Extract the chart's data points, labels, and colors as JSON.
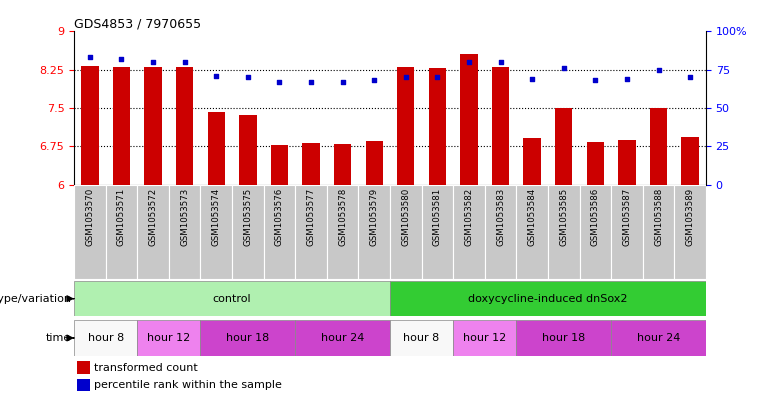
{
  "title": "GDS4853 / 7970655",
  "samples": [
    "GSM1053570",
    "GSM1053571",
    "GSM1053572",
    "GSM1053573",
    "GSM1053574",
    "GSM1053575",
    "GSM1053576",
    "GSM1053577",
    "GSM1053578",
    "GSM1053579",
    "GSM1053580",
    "GSM1053581",
    "GSM1053582",
    "GSM1053583",
    "GSM1053584",
    "GSM1053585",
    "GSM1053586",
    "GSM1053587",
    "GSM1053588",
    "GSM1053589"
  ],
  "bar_values": [
    8.32,
    8.31,
    8.3,
    8.3,
    7.43,
    7.37,
    6.78,
    6.82,
    6.8,
    6.86,
    8.3,
    8.28,
    8.55,
    8.3,
    6.92,
    7.5,
    6.83,
    6.87,
    7.5,
    6.93
  ],
  "dot_values": [
    83,
    82,
    80,
    80,
    71,
    70,
    67,
    67,
    67,
    68,
    70,
    70,
    80,
    80,
    69,
    76,
    68,
    69,
    75,
    70
  ],
  "ylim_left": [
    6,
    9
  ],
  "ylim_right": [
    0,
    100
  ],
  "yticks_left": [
    6,
    6.75,
    7.5,
    8.25,
    9
  ],
  "yticks_right": [
    0,
    25,
    50,
    75,
    100
  ],
  "bar_color": "#cc0000",
  "dot_color": "#0000cc",
  "genotype_groups": [
    {
      "label": "control",
      "start": 0,
      "end": 10,
      "color": "#b0f0b0"
    },
    {
      "label": "doxycycline-induced dnSox2",
      "start": 10,
      "end": 20,
      "color": "#33cc33"
    }
  ],
  "time_groups": [
    {
      "label": "hour 8",
      "start": 0,
      "end": 2,
      "color": "#ffffff"
    },
    {
      "label": "hour 12",
      "start": 2,
      "end": 4,
      "color": "#ee82ee"
    },
    {
      "label": "hour 18",
      "start": 4,
      "end": 7,
      "color": "#ee82ee"
    },
    {
      "label": "hour 24",
      "start": 7,
      "end": 10,
      "color": "#dd44dd"
    },
    {
      "label": "hour 8",
      "start": 10,
      "end": 12,
      "color": "#ffffff"
    },
    {
      "label": "hour 12",
      "start": 12,
      "end": 14,
      "color": "#ee82ee"
    },
    {
      "label": "hour 18",
      "start": 14,
      "end": 17,
      "color": "#ee82ee"
    },
    {
      "label": "hour 24",
      "start": 17,
      "end": 20,
      "color": "#dd44dd"
    }
  ],
  "legend_bar_label": "transformed count",
  "legend_dot_label": "percentile rank within the sample",
  "genotype_label": "genotype/variation",
  "time_label": "time",
  "xaxis_bg": "#c8c8c8"
}
